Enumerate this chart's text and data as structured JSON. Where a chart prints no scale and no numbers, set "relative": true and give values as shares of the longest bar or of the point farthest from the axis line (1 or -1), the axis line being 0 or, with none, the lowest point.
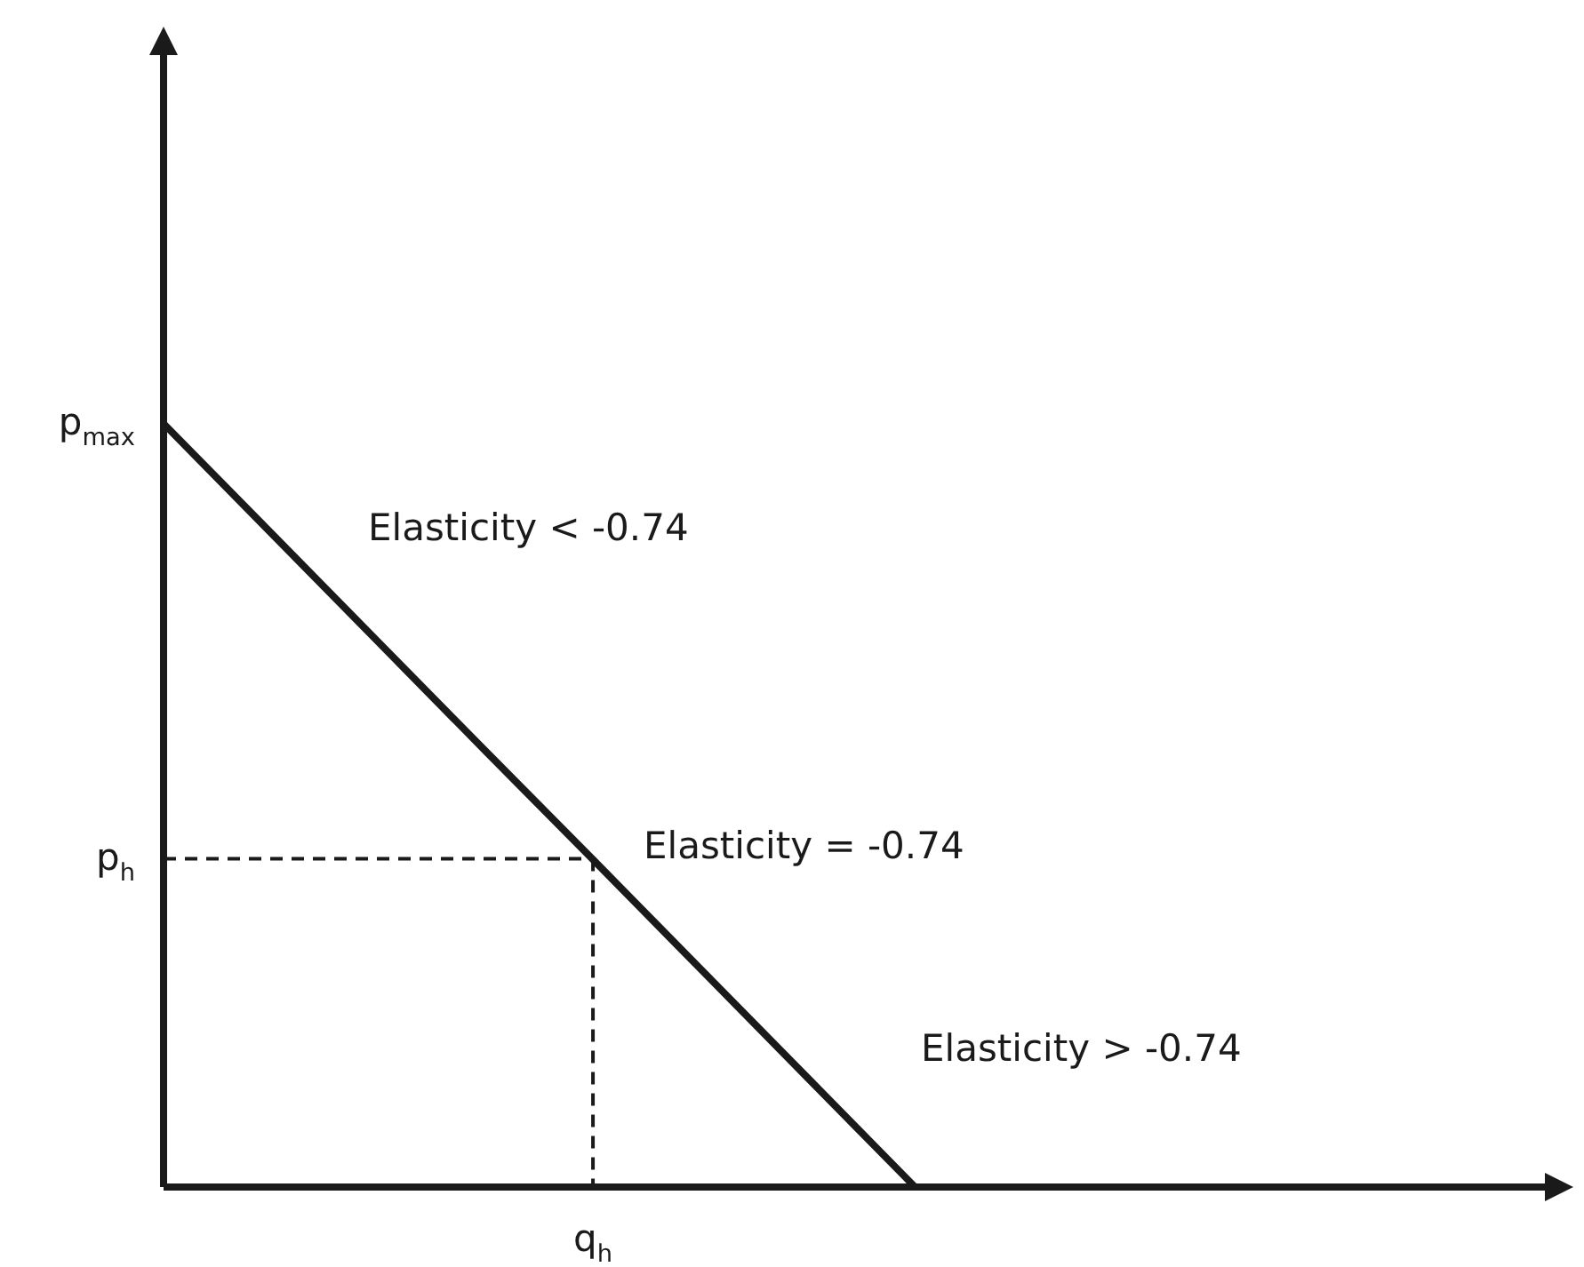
{
  "chart_data": {
    "type": "line",
    "relative": true,
    "categories": [
      null,
      null,
      null,
      null,
      null,
      null,
      null,
      null,
      null,
      null,
      null,
      null,
      null,
      null
    ],
    "series": [
      {
        "color": "#1a1a1a",
        "values": [
          1,
          0.857,
          0.714,
          0.571,
          0.429,
          0.286,
          0.143,
          0,
          null,
          null,
          null,
          null,
          null,
          null
        ],
        "line_style": "solid"
      },
      {
        "color": "#1a1a1a",
        "values": [
          0.43,
          0.43,
          0.43,
          0.43,
          0.43,
          null,
          null,
          null,
          null,
          null,
          null,
          null,
          null,
          null
        ],
        "line_style": "dashed"
      }
    ],
    "annotations": [
      "p$_{max}$",
      "p$_{h}$",
      "q$_{h}$",
      "Elasticity < -0.74",
      "Elasticity = -0.74",
      "Elasticity > -0.74"
    ],
    "marker": "none"
  }
}
